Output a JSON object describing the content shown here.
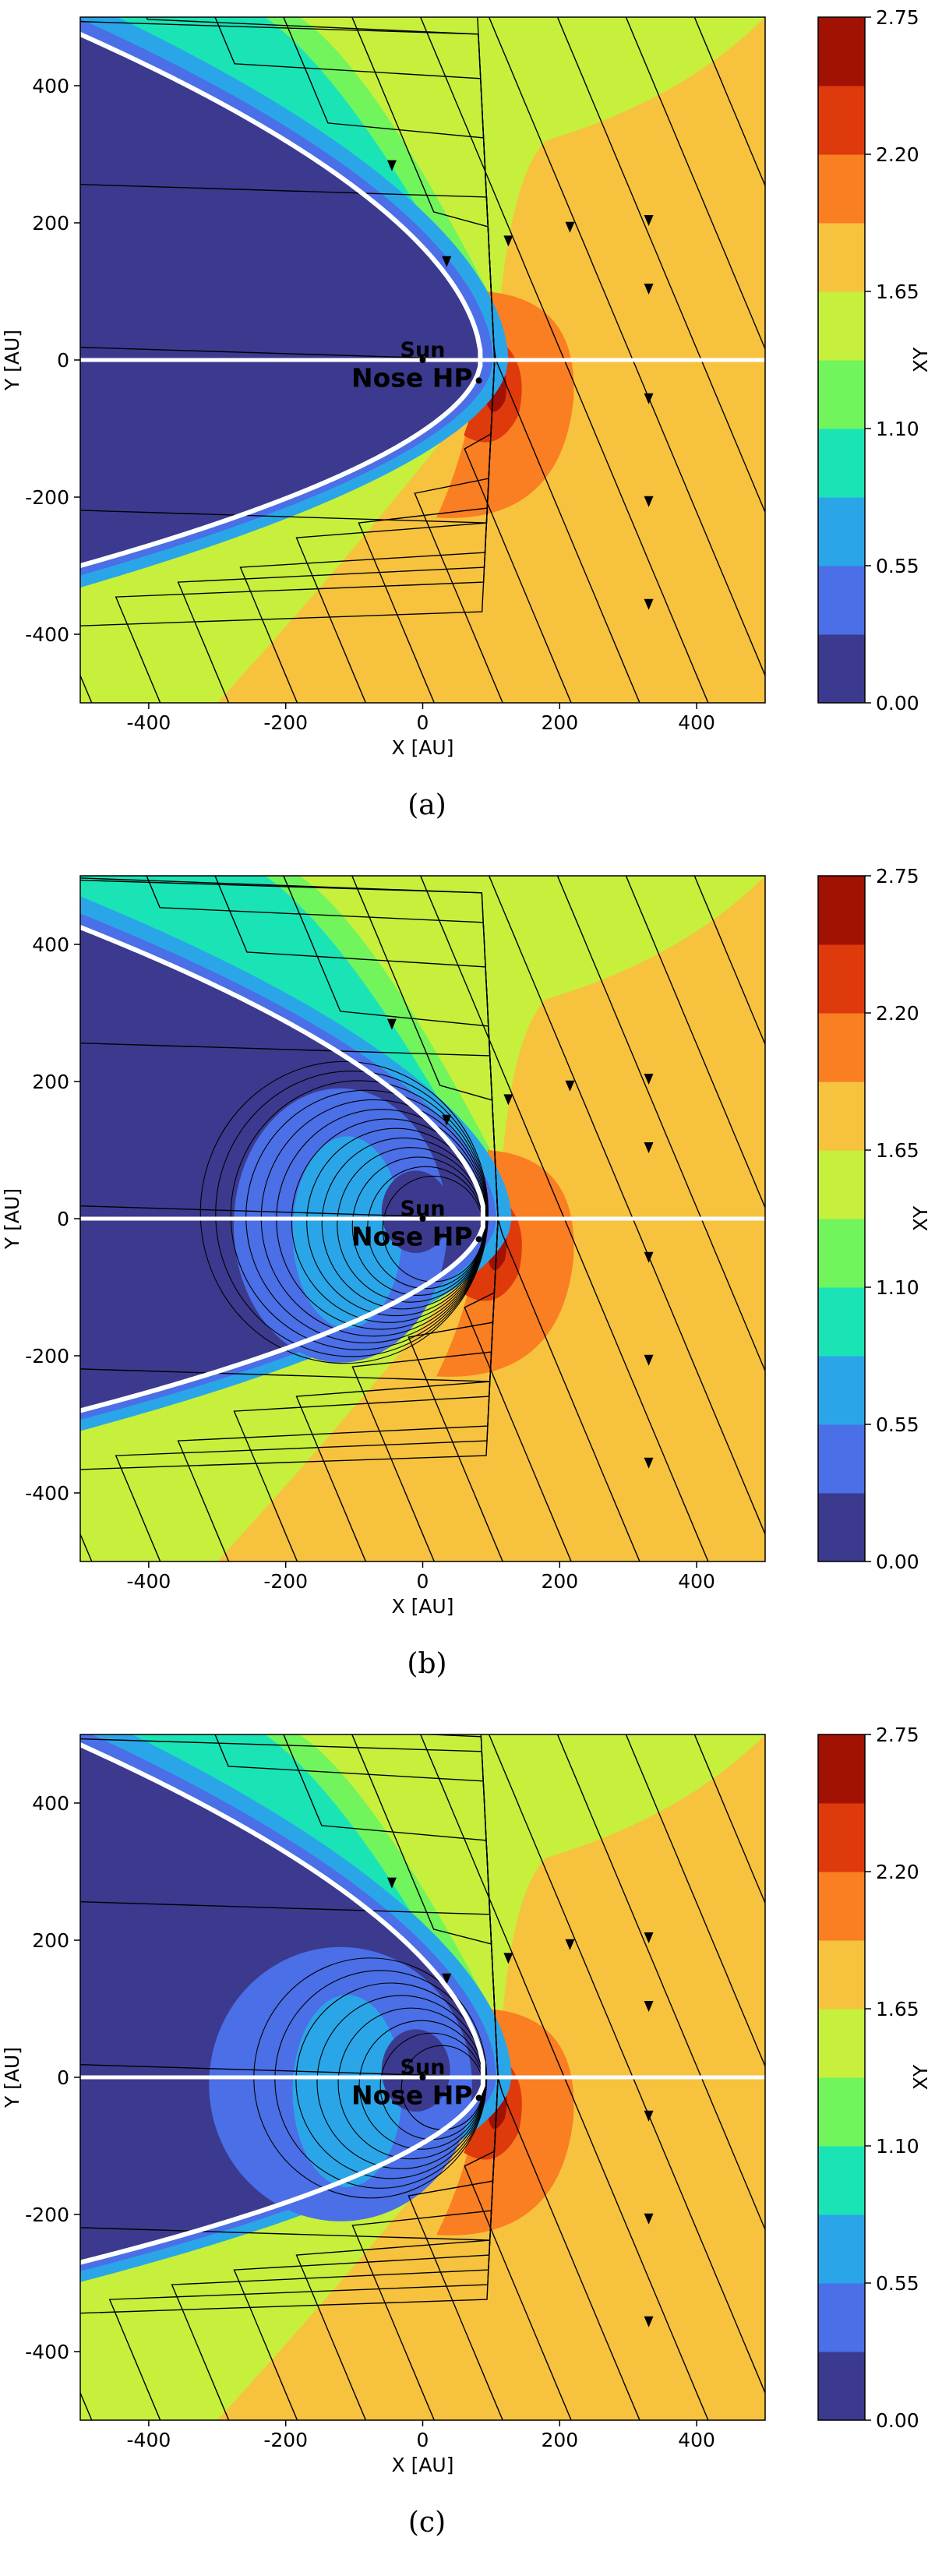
{
  "chart_data": [
    {
      "type": "heatmap",
      "caption": "(a)",
      "xlabel": "X [AU]",
      "ylabel": "Y [AU]",
      "xlim": [
        -500,
        500
      ],
      "ylim": [
        -500,
        500
      ],
      "xticks": [
        -400,
        -200,
        0,
        200,
        400
      ],
      "yticks": [
        -400,
        -200,
        0,
        200,
        400
      ],
      "colorbar": {
        "label": "XY",
        "range": [
          0.0,
          2.75
        ],
        "tick_labels": [
          "0.00",
          "0.55",
          "1.10",
          "1.65",
          "2.20",
          "2.75"
        ],
        "levels": [
          0.0,
          0.275,
          0.55,
          0.825,
          1.1,
          1.375,
          1.65,
          1.925,
          2.2,
          2.475,
          2.75
        ],
        "colors": [
          "#3b3a8f",
          "#4a6fe6",
          "#2aa6e8",
          "#1ae4b6",
          "#72f45c",
          "#c6f03c",
          "#f7c23e",
          "#fa7e22",
          "#de3a0b",
          "#a11204"
        ]
      },
      "annotations": [
        {
          "text": "Sun",
          "x": 0,
          "y": 0
        },
        {
          "text": "Nose HP",
          "x": 82,
          "y": -30
        }
      ],
      "heliopause": {
        "nose_x": 85,
        "half_width_at_x_minus_500": [
          475,
          -300
        ]
      },
      "interior_loops": false
    },
    {
      "type": "heatmap",
      "caption": "(b)",
      "xlabel": "X [AU]",
      "ylabel": "Y [AU]",
      "xlim": [
        -500,
        500
      ],
      "ylim": [
        -500,
        500
      ],
      "xticks": [
        -400,
        -200,
        0,
        200,
        400
      ],
      "yticks": [
        -400,
        -200,
        0,
        200,
        400
      ],
      "colorbar": {
        "label": "XY",
        "range": [
          0.0,
          2.75
        ],
        "tick_labels": [
          "0.00",
          "0.55",
          "1.10",
          "1.65",
          "2.20",
          "2.75"
        ],
        "levels": [
          0.0,
          0.275,
          0.55,
          0.825,
          1.1,
          1.375,
          1.65,
          1.925,
          2.2,
          2.475,
          2.75
        ],
        "colors": [
          "#3b3a8f",
          "#4a6fe6",
          "#2aa6e8",
          "#1ae4b6",
          "#72f45c",
          "#c6f03c",
          "#f7c23e",
          "#fa7e22",
          "#de3a0b",
          "#a11204"
        ]
      },
      "annotations": [
        {
          "text": "Sun",
          "x": 0,
          "y": 0
        },
        {
          "text": "Nose HP",
          "x": 82,
          "y": -30
        }
      ],
      "heliopause": {
        "nose_x": 90,
        "half_width_at_x_minus_500": [
          425,
          -280
        ]
      },
      "interior_loops": true
    },
    {
      "type": "heatmap",
      "caption": "(c)",
      "xlabel": "X [AU]",
      "ylabel": "Y [AU]",
      "xlim": [
        -500,
        500
      ],
      "ylim": [
        -500,
        500
      ],
      "xticks": [
        -400,
        -200,
        0,
        200,
        400
      ],
      "yticks": [
        -400,
        -200,
        0,
        200,
        400
      ],
      "colorbar": {
        "label": "XY",
        "range": [
          0.0,
          2.75
        ],
        "tick_labels": [
          "0.00",
          "0.55",
          "1.10",
          "1.65",
          "2.20",
          "2.75"
        ],
        "levels": [
          0.0,
          0.275,
          0.55,
          0.825,
          1.1,
          1.375,
          1.65,
          1.925,
          2.2,
          2.475,
          2.75
        ],
        "colors": [
          "#3b3a8f",
          "#4a6fe6",
          "#2aa6e8",
          "#1ae4b6",
          "#72f45c",
          "#c6f03c",
          "#f7c23e",
          "#fa7e22",
          "#de3a0b",
          "#a11204"
        ]
      },
      "annotations": [
        {
          "text": "Sun",
          "x": 0,
          "y": 0
        },
        {
          "text": "Nose HP",
          "x": 82,
          "y": -30
        }
      ],
      "heliopause": {
        "nose_x": 90,
        "half_width_at_x_minus_500": [
          485,
          -270
        ]
      },
      "interior_loops": true
    }
  ]
}
